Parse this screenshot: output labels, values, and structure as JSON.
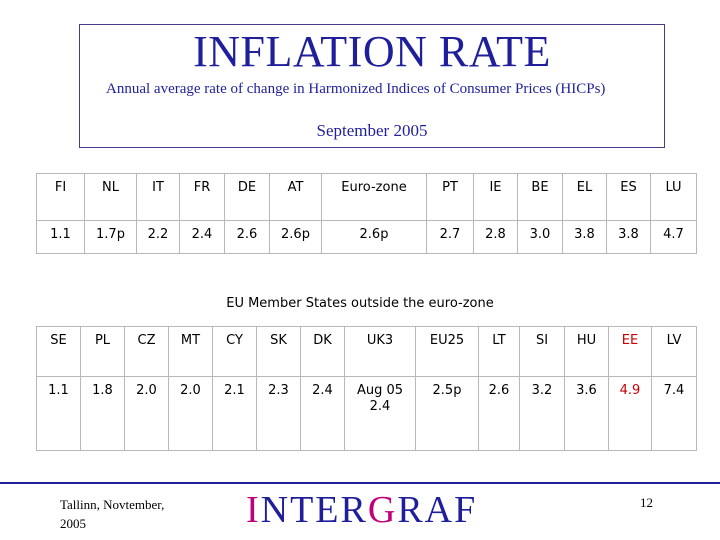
{
  "header": {
    "title": "INFLATION RATE",
    "subtitle": "Annual average rate of change in Harmonized Indices of Consumer Prices (HICPs)",
    "period": "September 2005",
    "border_color": "#4b3a8c",
    "text_color": "#1f1f9c"
  },
  "euro_zone_table": {
    "headers": [
      "FI",
      "NL",
      "IT",
      "FR",
      "DE",
      "AT",
      "Euro-zone",
      "PT",
      "IE",
      "BE",
      "EL",
      "ES",
      "LU"
    ],
    "values": [
      "1.1",
      "1.7p",
      "2.2",
      "2.4",
      "2.6",
      "2.6p",
      "2.6p",
      "2.7",
      "2.8",
      "3.0",
      "3.8",
      "3.8",
      "4.7"
    ]
  },
  "section_label": "EU Member States outside the euro-zone",
  "non_euro_table": {
    "headers": [
      "SE",
      "PL",
      "CZ",
      "MT",
      "CY",
      "SK",
      "DK",
      "UK3",
      "EU25",
      "LT",
      "SI",
      "HU",
      "EE",
      "LV"
    ],
    "values": [
      "1.1",
      "1.8",
      "2.0",
      "2.0",
      "2.1",
      "2.3",
      "2.4",
      "Aug 05\n2.4",
      "2.5p",
      "2.6",
      "3.2",
      "3.6",
      "4.9",
      "7.4"
    ],
    "highlight_color": "#cc0000",
    "highlighted_country": "EE"
  },
  "footer": {
    "location_date": "Tallinn, Novtember, 2005",
    "logo_letters": [
      {
        "text": "I",
        "accent": true
      },
      {
        "text": "NTER",
        "accent": false
      },
      {
        "text": "G",
        "accent": true
      },
      {
        "text": "RAF",
        "accent": false
      }
    ],
    "logo_colors": {
      "main": "#1f1f9c",
      "accent": "#c0007a"
    },
    "page_number": "12"
  }
}
